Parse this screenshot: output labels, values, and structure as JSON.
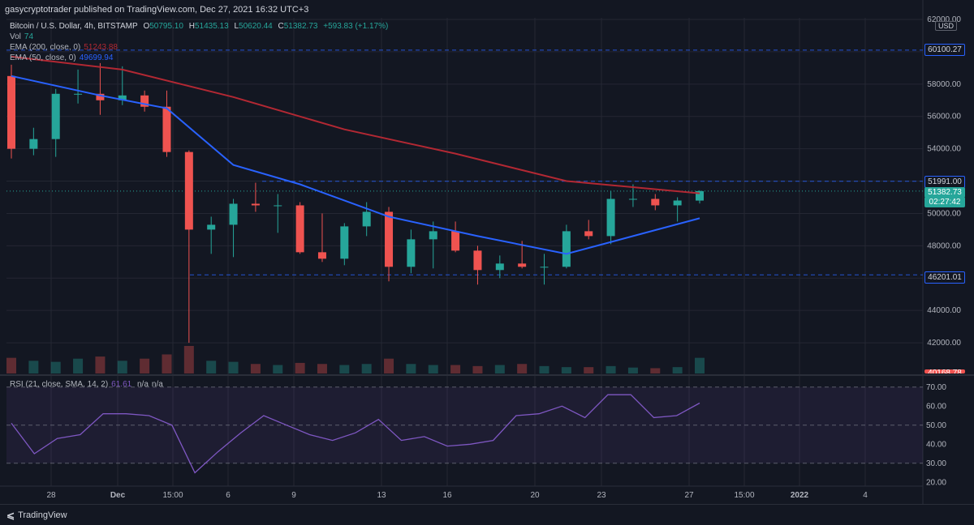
{
  "publisher": {
    "text": "gasycryptotrader published on TradingView.com, Dec 27, 2021 16:32 UTC+3"
  },
  "legend": {
    "symbol": "Bitcoin / U.S. Dollar, 4h, BITSTAMP",
    "open_label": "O",
    "open": "50795.10",
    "high_label": "H",
    "high": "51435.13",
    "low_label": "L",
    "low": "50620.44",
    "close_label": "C",
    "close": "51382.73",
    "change": "+593.83 (+1.17%)",
    "vol_label": "Vol",
    "vol": "74",
    "ema200_label": "EMA (200, close, 0)",
    "ema200": "51243.88",
    "ema50_label": "EMA (50, close, 0)",
    "ema50": "49699.94",
    "rsi_label": "RSI (21, close, SMA, 14, 2)",
    "rsi": "61.61",
    "rsi_na1": "n/a",
    "rsi_na2": "n/a"
  },
  "currency": "USD",
  "price_tags": {
    "resistance": "60100.27",
    "level_high": "51991.00",
    "last": "51382.73",
    "countdown": "02:27:42",
    "level_low": "46201.01",
    "bottom": "40168.78"
  },
  "colors": {
    "up": "#26a69a",
    "down": "#ef5350",
    "ema200": "#b22833",
    "ema50": "#2962ff",
    "rsi": "#7e57c2",
    "bg": "#131722",
    "grid": "#242733"
  },
  "footer": {
    "brand": "TradingView"
  },
  "chart_data": {
    "type": "candlestick",
    "title": "Bitcoin / U.S. Dollar, 4h, BITSTAMP",
    "ylim": [
      40100,
      62100
    ],
    "y_ticks": [
      42000,
      44000,
      46000,
      48000,
      50000,
      52000,
      54000,
      56000,
      58000,
      60000,
      62000
    ],
    "x_ticks": [
      "28",
      "Dec",
      "15:00",
      "6",
      "9",
      "13",
      "16",
      "20",
      "23",
      "27",
      "15:00",
      "2022",
      "4"
    ],
    "horizontal_levels": [
      60100.27,
      51991.0,
      46201.01
    ],
    "candles_approx": [
      {
        "t": "Nov 26",
        "o": 58500,
        "h": 59200,
        "l": 53400,
        "c": 54000
      },
      {
        "t": "Nov 27",
        "o": 54000,
        "h": 55300,
        "l": 53600,
        "c": 54600
      },
      {
        "t": "Nov 28",
        "o": 54600,
        "h": 57700,
        "l": 53500,
        "c": 57400
      },
      {
        "t": "Nov 29",
        "o": 57400,
        "h": 58900,
        "l": 56800,
        "c": 57400
      },
      {
        "t": "Nov 30",
        "o": 57400,
        "h": 59300,
        "l": 56100,
        "c": 57000
      },
      {
        "t": "Dec 1",
        "o": 57000,
        "h": 59100,
        "l": 56700,
        "c": 57300
      },
      {
        "t": "Dec 2",
        "o": 57300,
        "h": 57600,
        "l": 56300,
        "c": 56600
      },
      {
        "t": "Dec 3",
        "o": 56600,
        "h": 57600,
        "l": 53500,
        "c": 53800
      },
      {
        "t": "Dec 4",
        "o": 53800,
        "h": 53900,
        "l": 42000,
        "c": 49000
      },
      {
        "t": "Dec 5",
        "o": 49000,
        "h": 49800,
        "l": 47500,
        "c": 49300
      },
      {
        "t": "Dec 6",
        "o": 49300,
        "h": 50900,
        "l": 47300,
        "c": 50600
      },
      {
        "t": "Dec 7",
        "o": 50600,
        "h": 51900,
        "l": 50100,
        "c": 50500
      },
      {
        "t": "Dec 8",
        "o": 50500,
        "h": 51200,
        "l": 48800,
        "c": 50500
      },
      {
        "t": "Dec 9",
        "o": 50500,
        "h": 50700,
        "l": 47500,
        "c": 47600
      },
      {
        "t": "Dec 10",
        "o": 47600,
        "h": 50000,
        "l": 47000,
        "c": 47200
      },
      {
        "t": "Dec 11",
        "o": 47200,
        "h": 49400,
        "l": 46800,
        "c": 49200
      },
      {
        "t": "Dec 12",
        "o": 49200,
        "h": 50700,
        "l": 48600,
        "c": 50100
      },
      {
        "t": "Dec 13",
        "o": 50100,
        "h": 50400,
        "l": 45800,
        "c": 46700
      },
      {
        "t": "Dec 14",
        "o": 46700,
        "h": 49000,
        "l": 46300,
        "c": 48400
      },
      {
        "t": "Dec 15",
        "o": 48400,
        "h": 49500,
        "l": 46600,
        "c": 48900
      },
      {
        "t": "Dec 16",
        "o": 48900,
        "h": 49500,
        "l": 47600,
        "c": 47700
      },
      {
        "t": "Dec 17",
        "o": 47700,
        "h": 48000,
        "l": 45600,
        "c": 46500
      },
      {
        "t": "Dec 18",
        "o": 46500,
        "h": 47400,
        "l": 46000,
        "c": 46900
      },
      {
        "t": "Dec 19",
        "o": 46900,
        "h": 48300,
        "l": 46600,
        "c": 46700
      },
      {
        "t": "Dec 20",
        "o": 46700,
        "h": 47500,
        "l": 45600,
        "c": 46700
      },
      {
        "t": "Dec 21",
        "o": 46700,
        "h": 49300,
        "l": 46600,
        "c": 48900
      },
      {
        "t": "Dec 22",
        "o": 48900,
        "h": 49600,
        "l": 48400,
        "c": 48600
      },
      {
        "t": "Dec 23",
        "o": 48600,
        "h": 51400,
        "l": 48100,
        "c": 50900
      },
      {
        "t": "Dec 24",
        "o": 50900,
        "h": 51800,
        "l": 50400,
        "c": 50900
      },
      {
        "t": "Dec 25",
        "o": 50900,
        "h": 51200,
        "l": 50200,
        "c": 50500
      },
      {
        "t": "Dec 26",
        "o": 50500,
        "h": 51000,
        "l": 49500,
        "c": 50800
      },
      {
        "t": "Dec 27",
        "o": 50795.1,
        "h": 51435.13,
        "l": 50620.44,
        "c": 51382.73
      }
    ],
    "ema200_approx": [
      {
        "t": "Nov 26",
        "v": 59700
      },
      {
        "t": "Dec 1",
        "v": 58900
      },
      {
        "t": "Dec 6",
        "v": 57200
      },
      {
        "t": "Dec 11",
        "v": 55200
      },
      {
        "t": "Dec 16",
        "v": 53700
      },
      {
        "t": "Dec 21",
        "v": 52000
      },
      {
        "t": "Dec 27",
        "v": 51243.88
      }
    ],
    "ema50_approx": [
      {
        "t": "Nov 26",
        "v": 58500
      },
      {
        "t": "Nov 30",
        "v": 57300
      },
      {
        "t": "Dec 3",
        "v": 56500
      },
      {
        "t": "Dec 6",
        "v": 53000
      },
      {
        "t": "Dec 9",
        "v": 51800
      },
      {
        "t": "Dec 13",
        "v": 49800
      },
      {
        "t": "Dec 17",
        "v": 48600
      },
      {
        "t": "Dec 21",
        "v": 47500
      },
      {
        "t": "Dec 24",
        "v": 48600
      },
      {
        "t": "Dec 27",
        "v": 49699.94
      }
    ],
    "rsi": {
      "ylim": [
        18,
        75
      ],
      "y_ticks": [
        20,
        30,
        40,
        50,
        60,
        70
      ],
      "bands": [
        30,
        70
      ],
      "values_approx": [
        51,
        35,
        43,
        45,
        56,
        56,
        55,
        50,
        25,
        36,
        46,
        55,
        50,
        45,
        42,
        46,
        53,
        42,
        44,
        39,
        40,
        42,
        55,
        56,
        60,
        54,
        66,
        66,
        54,
        55,
        61.61
      ]
    },
    "volume_approx": [
      74,
      60,
      55,
      70,
      80,
      60,
      70,
      90,
      130,
      60,
      55,
      45,
      40,
      50,
      45,
      40,
      45,
      70,
      45,
      40,
      40,
      35,
      40,
      45,
      35,
      30,
      30,
      35,
      28,
      25,
      30,
      74
    ]
  }
}
